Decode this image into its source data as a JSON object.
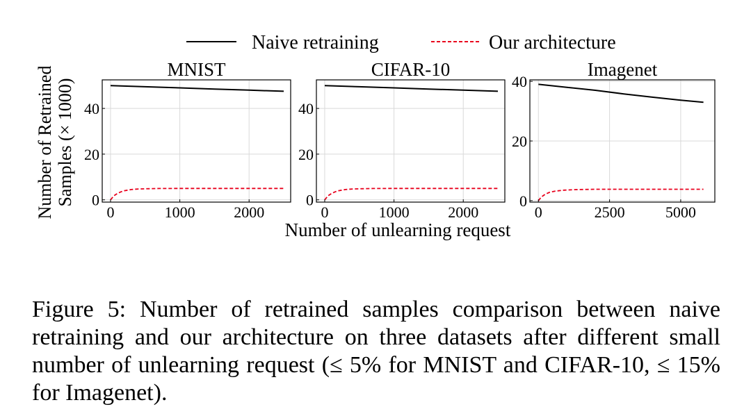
{
  "legend": {
    "items": [
      {
        "label": "Naive retraining",
        "color": "#000000",
        "dash": "solid"
      },
      {
        "label": "Our architecture",
        "color": "#e8001c",
        "dash": "dashed"
      }
    ]
  },
  "shared_ylabel": [
    "Number of Retrained",
    "Samples (× 1000)"
  ],
  "shared_xlabel": "Number of unlearning request",
  "chart_data": [
    {
      "type": "line",
      "title": "MNIST",
      "xlim": [
        -120,
        2600
      ],
      "ylim": [
        -1,
        52.5
      ],
      "xticks": [
        0,
        1000,
        2000
      ],
      "xtick_labels": [
        "0",
        "1000",
        "2000"
      ],
      "yticks": [
        0,
        20,
        40
      ],
      "ytick_labels": [
        "0",
        "20",
        "40"
      ],
      "grid": true,
      "legend": "top-center (shared)",
      "series": [
        {
          "name": "Naive retraining",
          "color": "#000000",
          "dash": "solid",
          "x": [
            0,
            500,
            1000,
            1500,
            2000,
            2500
          ],
          "y": [
            50,
            49.5,
            49,
            48.5,
            48,
            47.5
          ]
        },
        {
          "name": "Our architecture",
          "color": "#e8001c",
          "dash": "dashed",
          "x": [
            0,
            50,
            100,
            150,
            200,
            300,
            400,
            500,
            700,
            1000,
            1500,
            2000,
            2500
          ],
          "y": [
            0,
            1.8,
            2.8,
            3.5,
            4.0,
            4.5,
            4.75,
            4.85,
            4.95,
            5.0,
            5.0,
            5.0,
            5.0
          ]
        }
      ]
    },
    {
      "type": "line",
      "title": "CIFAR-10",
      "xlim": [
        -120,
        2600
      ],
      "ylim": [
        -1,
        52.5
      ],
      "xticks": [
        0,
        1000,
        2000
      ],
      "xtick_labels": [
        "0",
        "1000",
        "2000"
      ],
      "yticks": [
        0,
        20,
        40
      ],
      "ytick_labels": [
        "0",
        "20",
        "40"
      ],
      "grid": true,
      "legend": "top-center (shared)",
      "series": [
        {
          "name": "Naive retraining",
          "color": "#000000",
          "dash": "solid",
          "x": [
            0,
            500,
            1000,
            1500,
            2000,
            2500
          ],
          "y": [
            50,
            49.5,
            49,
            48.5,
            48,
            47.5
          ]
        },
        {
          "name": "Our architecture",
          "color": "#e8001c",
          "dash": "dashed",
          "x": [
            0,
            50,
            100,
            150,
            200,
            300,
            400,
            500,
            700,
            1000,
            1500,
            2000,
            2500
          ],
          "y": [
            0,
            1.8,
            2.8,
            3.5,
            4.0,
            4.5,
            4.75,
            4.85,
            4.95,
            5.0,
            5.0,
            5.0,
            5.0
          ]
        }
      ]
    },
    {
      "type": "line",
      "title": "Imagenet",
      "xlim": [
        -300,
        6200
      ],
      "ylim": [
        -0.5,
        40.5
      ],
      "xticks": [
        0,
        2500,
        5000
      ],
      "xtick_labels": [
        "0",
        "2500",
        "5000"
      ],
      "yticks": [
        0,
        20,
        40
      ],
      "ytick_labels": [
        "0",
        "20",
        "40"
      ],
      "grid": true,
      "legend": "top-center (shared)",
      "series": [
        {
          "name": "Naive retraining",
          "color": "#000000",
          "dash": "solid",
          "x": [
            0,
            1000,
            2000,
            3000,
            4000,
            5000,
            5800
          ],
          "y": [
            39,
            38.0,
            37.0,
            35.8,
            34.7,
            33.7,
            33
          ]
        },
        {
          "name": "Our architecture",
          "color": "#e8001c",
          "dash": "dashed",
          "x": [
            0,
            100,
            250,
            400,
            600,
            900,
            1300,
            2000,
            3000,
            4000,
            5000,
            5800
          ],
          "y": [
            0,
            1.2,
            2.2,
            2.8,
            3.2,
            3.5,
            3.7,
            3.8,
            3.8,
            3.8,
            3.8,
            3.8
          ]
        }
      ]
    }
  ],
  "caption": "Figure 5: Number of retrained samples comparison between naive retraining and our architecture on three datasets after different small number of unlearning request (≤ 5% for MNIST and CIFAR-10, ≤ 15% for Imagenet)."
}
